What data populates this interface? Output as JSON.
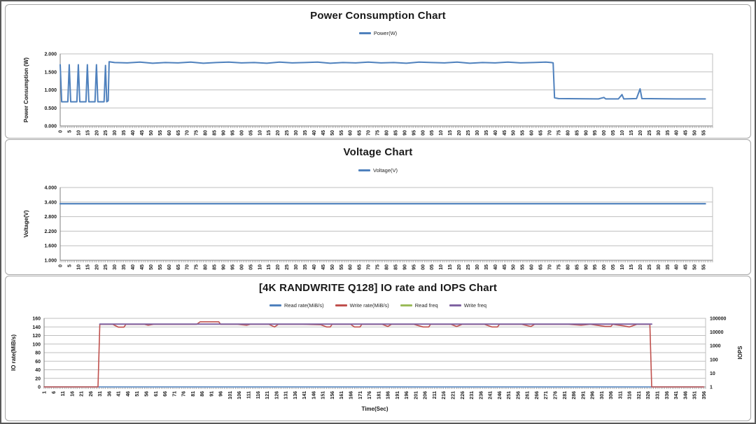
{
  "chart_data": [
    {
      "type": "line",
      "title": "Power Consumption Chart",
      "legend": [
        {
          "label": "Power(W)",
          "color": "#4F81BD"
        }
      ],
      "legend_position": "top",
      "grid": true,
      "x_axis": {
        "label": "",
        "min": 0,
        "max": 360,
        "tick_step": 5,
        "label_start": 0,
        "label_max": 355,
        "tick_label_style": "mod100"
      },
      "y_axis": {
        "label": "Power Consumption (W)",
        "min": 0,
        "max": 2,
        "step": 0.5,
        "decimals": 3
      },
      "series": [
        {
          "name": "Power(W)",
          "color": "#4F81BD",
          "width": 2,
          "axis": "left",
          "points": [
            [
              0,
              1.7
            ],
            [
              0.8,
              0.67
            ],
            [
              4.2,
              0.67
            ],
            [
              5,
              1.7
            ],
            [
              5.8,
              0.67
            ],
            [
              9.2,
              0.67
            ],
            [
              10,
              1.7
            ],
            [
              10.8,
              0.67
            ],
            [
              14.2,
              0.67
            ],
            [
              15,
              1.7
            ],
            [
              15.8,
              0.67
            ],
            [
              19.2,
              0.67
            ],
            [
              20,
              1.7
            ],
            [
              20.8,
              0.67
            ],
            [
              24.2,
              0.67
            ],
            [
              25,
              1.68
            ],
            [
              25.7,
              0.67
            ],
            [
              26.5,
              0.7
            ],
            [
              27,
              1.78
            ],
            [
              30,
              1.76
            ],
            [
              37,
              1.75
            ],
            [
              44,
              1.77
            ],
            [
              51,
              1.74
            ],
            [
              58,
              1.76
            ],
            [
              65,
              1.75
            ],
            [
              72,
              1.77
            ],
            [
              79,
              1.74
            ],
            [
              86,
              1.76
            ],
            [
              93,
              1.77
            ],
            [
              100,
              1.75
            ],
            [
              107,
              1.76
            ],
            [
              114,
              1.74
            ],
            [
              121,
              1.77
            ],
            [
              128,
              1.75
            ],
            [
              135,
              1.76
            ],
            [
              142,
              1.77
            ],
            [
              149,
              1.74
            ],
            [
              156,
              1.76
            ],
            [
              163,
              1.75
            ],
            [
              170,
              1.77
            ],
            [
              177,
              1.75
            ],
            [
              184,
              1.76
            ],
            [
              191,
              1.74
            ],
            [
              198,
              1.77
            ],
            [
              205,
              1.76
            ],
            [
              212,
              1.75
            ],
            [
              219,
              1.77
            ],
            [
              226,
              1.74
            ],
            [
              233,
              1.76
            ],
            [
              240,
              1.75
            ],
            [
              247,
              1.77
            ],
            [
              254,
              1.75
            ],
            [
              261,
              1.76
            ],
            [
              268,
              1.77
            ],
            [
              271,
              1.76
            ],
            [
              272,
              1.75
            ],
            [
              272.8,
              0.78
            ],
            [
              275,
              0.76
            ],
            [
              297,
              0.75
            ],
            [
              300,
              0.79
            ],
            [
              301,
              0.75
            ],
            [
              308,
              0.75
            ],
            [
              310,
              0.87
            ],
            [
              311,
              0.75
            ],
            [
              318,
              0.76
            ],
            [
              320,
              1.03
            ],
            [
              321,
              0.76
            ],
            [
              340,
              0.75
            ],
            [
              356,
              0.75
            ]
          ]
        }
      ]
    },
    {
      "type": "line",
      "title": "Voltage Chart",
      "legend": [
        {
          "label": "Voltage(V)",
          "color": "#4F81BD"
        }
      ],
      "legend_position": "top",
      "grid": true,
      "x_axis": {
        "label": "",
        "min": 0,
        "max": 360,
        "tick_step": 5,
        "label_start": 0,
        "label_max": 355,
        "tick_label_style": "mod100"
      },
      "y_axis": {
        "label": "Voltage(V)",
        "min": 1,
        "max": 4,
        "step": 0.6,
        "decimals": 3
      },
      "series": [
        {
          "name": "Voltage(V)",
          "color": "#4F81BD",
          "width": 2.2,
          "axis": "left",
          "points": [
            [
              0,
              3.33
            ],
            [
              60,
              3.33
            ],
            [
              120,
              3.33
            ],
            [
              180,
              3.33
            ],
            [
              240,
              3.33
            ],
            [
              300,
              3.33
            ],
            [
              356,
              3.33
            ]
          ]
        }
      ]
    },
    {
      "type": "line",
      "title": "[4K RANDWRITE Q128] IO rate and IOPS Chart",
      "legend": [
        {
          "label": "Read rate(MiB/s)",
          "color": "#4F81BD"
        },
        {
          "label": "Write rate(MiB/s)",
          "color": "#C0504D"
        },
        {
          "label": "Read freq",
          "color": "#9BBB59"
        },
        {
          "label": "Write freq",
          "color": "#8064A2"
        }
      ],
      "legend_position": "top",
      "grid": true,
      "x_axis": {
        "label": "Time(Sec)",
        "min": 1,
        "max": 357,
        "tick_step": 5,
        "label_start": 1,
        "label_max": 356,
        "tick_label_style": "plain"
      },
      "y_axis": {
        "label": "IO rate(MiB/s)",
        "min": 0,
        "max": 160,
        "step": 20,
        "decimals": 0
      },
      "y2_axis": {
        "label": "IOPS",
        "scale": "log",
        "min": 1,
        "max": 100000
      },
      "series": [
        {
          "name": "Read rate(MiB/s)",
          "color": "#4F81BD",
          "width": 1.6,
          "axis": "left",
          "points": [
            [
              1,
              0
            ],
            [
              356,
              0
            ]
          ]
        },
        {
          "name": "Write rate(MiB/s)",
          "color": "#C0504D",
          "width": 1.6,
          "axis": "left",
          "points": [
            [
              1,
              0
            ],
            [
              30,
              0
            ],
            [
              31,
              146
            ],
            [
              38,
              146
            ],
            [
              41,
              139.5
            ],
            [
              44,
              139.5
            ],
            [
              45,
              146
            ],
            [
              55,
              146
            ],
            [
              57,
              144
            ],
            [
              60,
              146
            ],
            [
              70,
              146
            ],
            [
              83,
              146
            ],
            [
              85,
              152
            ],
            [
              95,
              152
            ],
            [
              96,
              146
            ],
            [
              105,
              146
            ],
            [
              110,
              144
            ],
            [
              112,
              146
            ],
            [
              122,
              146
            ],
            [
              125,
              140
            ],
            [
              127,
              146
            ],
            [
              140,
              146
            ],
            [
              150,
              145
            ],
            [
              153,
              140
            ],
            [
              155,
              140
            ],
            [
              156,
              146
            ],
            [
              166,
              146
            ],
            [
              168,
              140
            ],
            [
              171,
              140
            ],
            [
              172,
              146
            ],
            [
              183,
              146
            ],
            [
              186,
              141
            ],
            [
              188,
              146
            ],
            [
              200,
              146
            ],
            [
              205,
              140
            ],
            [
              208,
              140
            ],
            [
              209,
              146
            ],
            [
              220,
              146
            ],
            [
              223,
              141
            ],
            [
              226,
              146
            ],
            [
              238,
              146
            ],
            [
              242,
              140
            ],
            [
              245,
              140
            ],
            [
              246,
              146
            ],
            [
              258,
              146
            ],
            [
              263,
              141
            ],
            [
              265,
              146
            ],
            [
              278,
              146
            ],
            [
              283,
              146
            ],
            [
              290,
              144
            ],
            [
              295,
              146
            ],
            [
              303,
              141
            ],
            [
              306,
              141
            ],
            [
              307,
              146
            ],
            [
              312,
              143
            ],
            [
              316,
              140
            ],
            [
              318,
              143
            ],
            [
              320,
              146
            ],
            [
              327,
              146
            ],
            [
              328,
              0
            ],
            [
              356,
              0
            ]
          ]
        },
        {
          "name": "Read freq",
          "color": "#9BBB59",
          "width": 1.6,
          "axis": "right",
          "points": [
            [
              1,
              0
            ],
            [
              356,
              0
            ]
          ]
        },
        {
          "name": "Write freq",
          "color": "#8064A2",
          "width": 2,
          "axis": "right",
          "points": [
            [
              31,
              37500
            ],
            [
              328,
              37500
            ]
          ]
        }
      ]
    }
  ]
}
